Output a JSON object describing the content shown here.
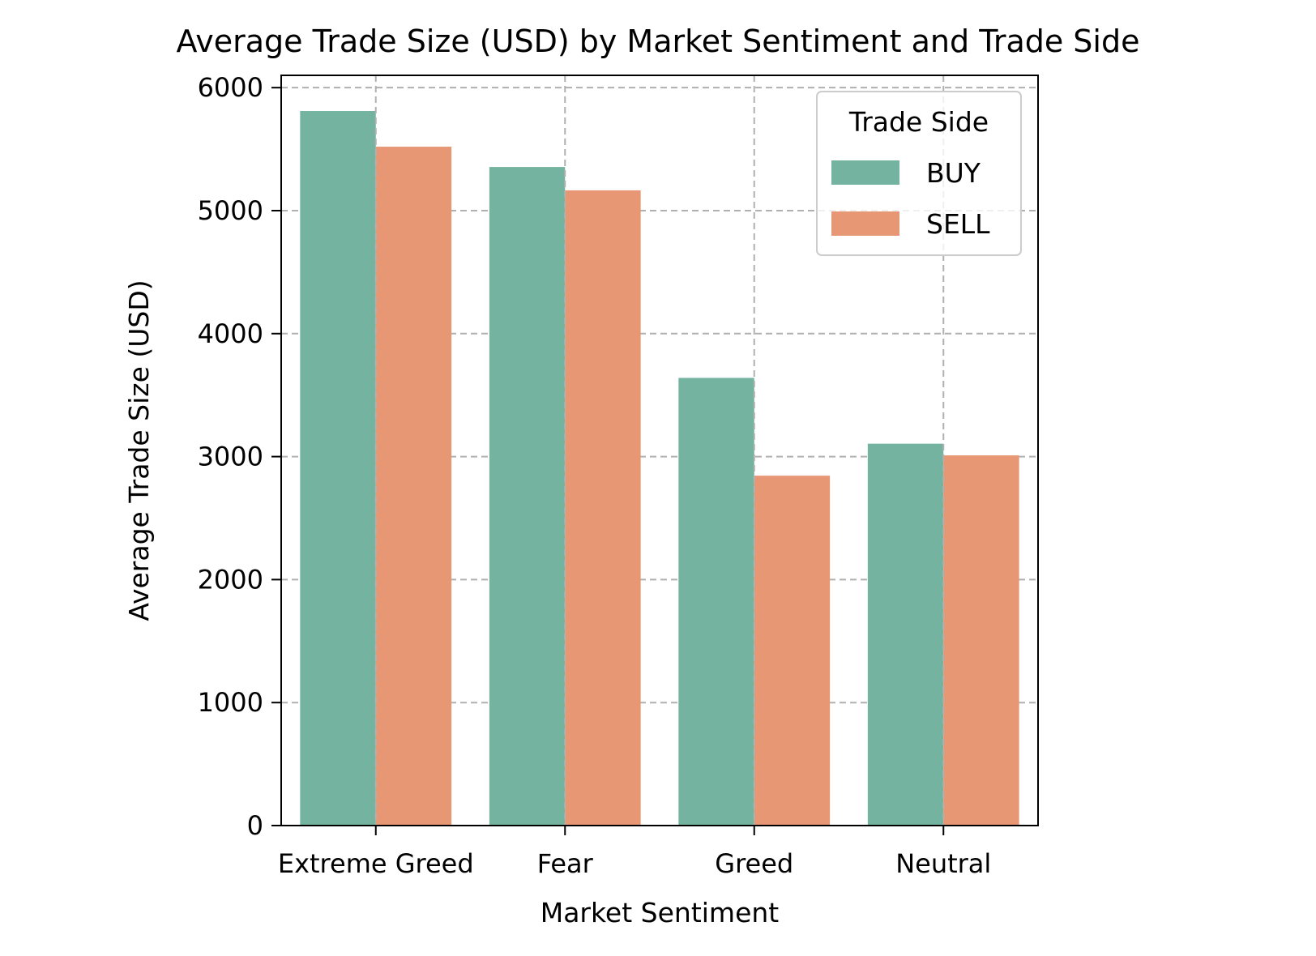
{
  "chart_data": {
    "type": "bar",
    "title": "Average Trade Size (USD) by Market Sentiment and Trade Side",
    "xlabel": "Market Sentiment",
    "ylabel": "Average Trade Size (USD)",
    "categories": [
      "Extreme Greed",
      "Fear",
      "Greed",
      "Neutral"
    ],
    "series": [
      {
        "name": "BUY",
        "color": "#73b3a0",
        "values": [
          5810,
          5355,
          3640,
          3105
        ]
      },
      {
        "name": "SELL",
        "color": "#e89774",
        "values": [
          5520,
          5165,
          2845,
          3010
        ]
      }
    ],
    "ylim": [
      0,
      6100
    ],
    "yticks": [
      0,
      1000,
      2000,
      3000,
      4000,
      5000,
      6000
    ],
    "grid": true,
    "legend": {
      "title": "Trade Side",
      "placement": "top-right"
    }
  }
}
